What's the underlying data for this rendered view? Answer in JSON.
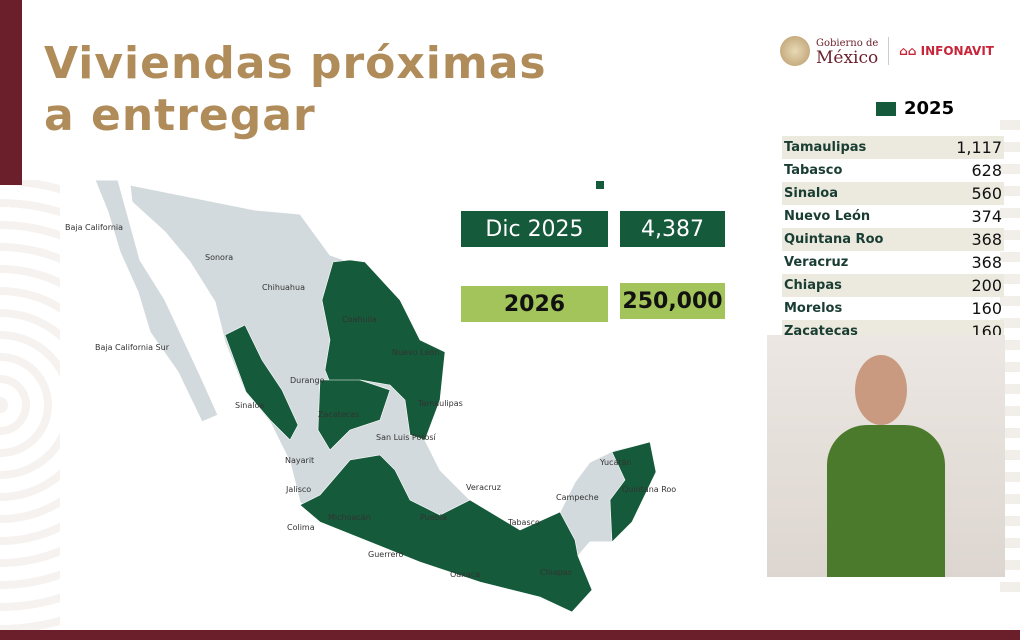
{
  "title": {
    "line1": "Viviendas próximas",
    "line2": "a entregar"
  },
  "logos": {
    "gobierno_small": "Gobierno de",
    "gobierno_big": "México",
    "infonavit": "INFONAVIT"
  },
  "legend": {
    "label": "2025",
    "color": "#155a3a"
  },
  "states_table": [
    {
      "state": "Tamaulipas",
      "value": "1,117"
    },
    {
      "state": "Tabasco",
      "value": "628"
    },
    {
      "state": "Sinaloa",
      "value": "560"
    },
    {
      "state": "Nuevo León",
      "value": "374"
    },
    {
      "state": "Quintana Roo",
      "value": "368"
    },
    {
      "state": "Veracruz",
      "value": "368"
    },
    {
      "state": "Chiapas",
      "value": "200"
    },
    {
      "state": "Morelos",
      "value": "160"
    },
    {
      "state": "Zacatecas",
      "value": "160"
    }
  ],
  "summary": {
    "dic_label": "Dic 2025",
    "dic_value": "4,387",
    "next_label": "2026",
    "next_value": "250,000"
  },
  "colors": {
    "dark_green": "#155a3a",
    "light_green": "#a3c45a",
    "map_gray": "#d3dadd",
    "maroon": "#6b1f2a",
    "gold": "#b08c5a"
  },
  "map_labels": [
    "Baja California",
    "Sonora",
    "Chihuahua",
    "Coahuila",
    "Nuevo León",
    "Tamaulipas",
    "Baja California Sur",
    "Durango",
    "Sinaloa",
    "Zacatecas",
    "San Luis Potosí",
    "Nayarit",
    "Jalisco",
    "Colima",
    "Michoacán",
    "Guerrero",
    "Oaxaca",
    "Veracruz",
    "Puebla",
    "Tabasco",
    "Chiapas",
    "Campeche",
    "Yucatán",
    "Quintana Roo"
  ]
}
